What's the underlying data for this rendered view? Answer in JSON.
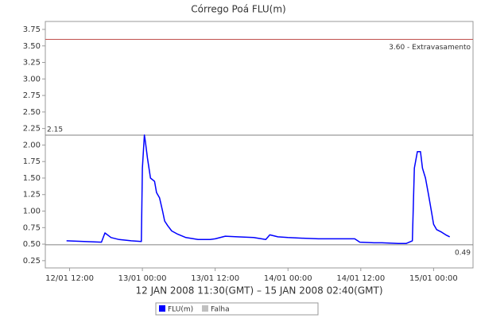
{
  "chart_data": {
    "type": "line",
    "title": "Córrego Poá FLU(m)",
    "xlabel": "12 JAN 2008 11:30(GMT) – 15 JAN 2008 02:40(GMT)",
    "x": [
      "12/01 11:30",
      "12/01 17:15",
      "12/01 17:50",
      "12/01 18:50",
      "12/01 20:10",
      "12/01 22:10",
      "12/01 23:50",
      "13/01 00:00",
      "13/01 00:20",
      "13/01 00:30",
      "13/01 00:50",
      "13/01 01:20",
      "13/01 02:00",
      "13/01 02:20",
      "13/01 02:50",
      "13/01 03:20",
      "13/01 03:40",
      "13/01 04:10",
      "13/01 04:50",
      "13/01 05:50",
      "13/01 07:10",
      "13/01 09:10",
      "13/01 11:10",
      "13/01 12:00",
      "13/01 13:40",
      "13/01 15:40",
      "13/01 18:20",
      "13/01 20:20",
      "13/01 21:00",
      "13/01 22:20",
      "14/01 00:00",
      "14/01 02:20",
      "14/01 05:00",
      "14/01 07:40",
      "14/01 11:00",
      "14/01 11:50",
      "14/01 14:10",
      "14/01 15:30",
      "14/01 18:10",
      "14/01 19:30",
      "14/01 20:30",
      "14/01 20:50",
      "14/01 21:20",
      "14/01 21:50",
      "14/01 22:10",
      "14/01 22:40",
      "14/01 23:10",
      "14/01 23:40",
      "15/01 00:00",
      "15/01 00:30",
      "15/01 01:20",
      "15/01 02:00",
      "15/01 02:40"
    ],
    "series": [
      {
        "name": "FLU(m)",
        "color": "#0000ff",
        "values": [
          0.55,
          0.53,
          0.67,
          0.6,
          0.57,
          0.55,
          0.54,
          1.65,
          2.15,
          2.05,
          1.8,
          1.5,
          1.45,
          1.28,
          1.2,
          1.0,
          0.85,
          0.78,
          0.7,
          0.65,
          0.6,
          0.57,
          0.57,
          0.58,
          0.62,
          0.61,
          0.6,
          0.57,
          0.64,
          0.61,
          0.6,
          0.59,
          0.58,
          0.58,
          0.58,
          0.53,
          0.52,
          0.52,
          0.51,
          0.51,
          0.55,
          1.65,
          1.9,
          1.9,
          1.65,
          1.5,
          1.25,
          0.98,
          0.8,
          0.72,
          0.68,
          0.64,
          0.61
        ]
      },
      {
        "name": "Falha",
        "color": "#c0c0c0",
        "values": [
          null,
          null,
          null,
          null,
          null,
          null,
          null,
          null,
          null,
          null,
          null,
          null,
          null,
          null,
          null,
          null,
          null,
          null,
          null,
          null,
          null,
          null,
          null,
          null,
          null,
          null,
          null,
          null,
          null,
          null,
          null,
          null,
          null,
          null,
          null,
          null,
          null,
          null,
          null,
          null,
          null,
          null,
          null,
          null,
          null,
          null,
          null,
          null,
          null,
          null,
          null,
          null,
          null
        ]
      }
    ],
    "xlim": [
      "12/01 08:00",
      "15/01 06:30"
    ],
    "xticks": [
      "12/01 12:00",
      "13/01 00:00",
      "13/01 12:00",
      "14/01 00:00",
      "14/01 12:00",
      "15/01 00:00"
    ],
    "ylim": [
      0.14,
      3.87
    ],
    "yticks": [
      {
        "value": 0.25,
        "label": "0.25"
      },
      {
        "value": 0.5,
        "label": "0.50"
      },
      {
        "value": 0.75,
        "label": "0.75"
      },
      {
        "value": 1,
        "label": "1.00"
      },
      {
        "value": 1.25,
        "label": "1.25"
      },
      {
        "value": 1.5,
        "label": "1.50"
      },
      {
        "value": 1.75,
        "label": "1.75"
      },
      {
        "value": 2,
        "label": "2.00"
      },
      {
        "value": 2.25,
        "label": "2.25"
      },
      {
        "value": 2.5,
        "label": "2.50"
      },
      {
        "value": 2.75,
        "label": "2.75"
      },
      {
        "value": 3,
        "label": "3.00"
      },
      {
        "value": 3.25,
        "label": "3.25"
      },
      {
        "value": 3.5,
        "label": "3.50"
      },
      {
        "value": 3.75,
        "label": "3.75"
      }
    ],
    "markers": [
      {
        "value": 3.6,
        "label": "3.60 - Extravasamento",
        "color": "#c0504d",
        "side": "right"
      },
      {
        "value": 2.15,
        "label": "2.15",
        "color": "#808080",
        "side": "left"
      },
      {
        "value": 0.49,
        "label": "0.49",
        "color": "#808080",
        "side": "right"
      }
    ],
    "grid": false
  }
}
